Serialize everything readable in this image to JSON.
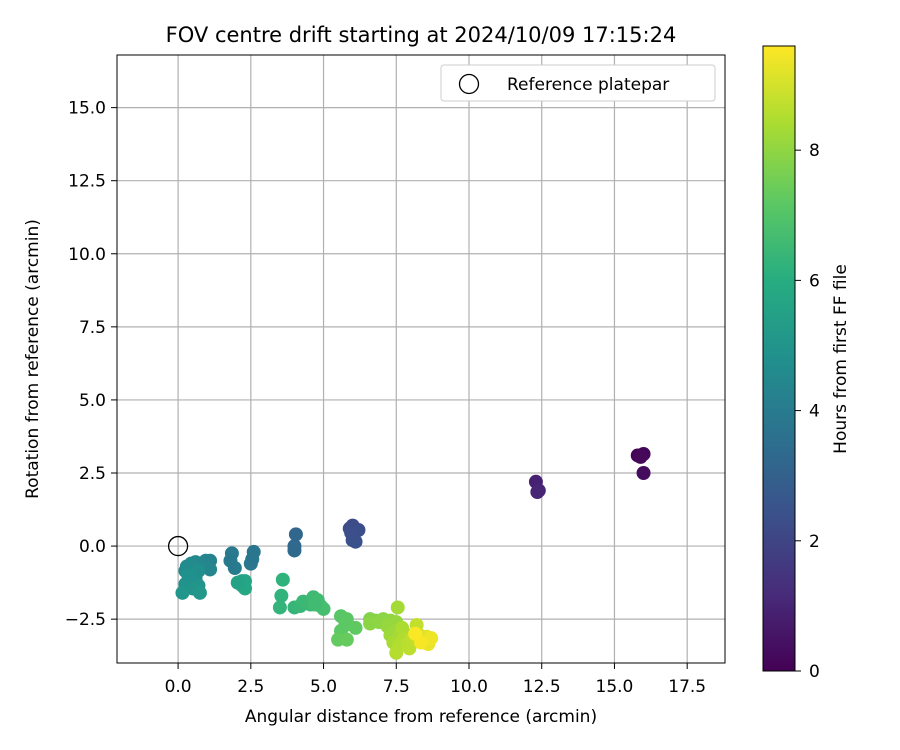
{
  "chart_data": {
    "type": "scatter",
    "title": "FOV centre drift starting at 2024/10/09 17:15:24",
    "xlabel": "Angular distance from reference (arcmin)",
    "ylabel": "Rotation from reference (arcmin)",
    "xlim": [
      -2.1,
      18.8
    ],
    "ylim": [
      -4.0,
      16.8
    ],
    "xticks": [
      0.0,
      2.5,
      5.0,
      7.5,
      10.0,
      12.5,
      15.0,
      17.5
    ],
    "yticks": [
      -2.5,
      0.0,
      2.5,
      5.0,
      7.5,
      10.0,
      12.5,
      15.0
    ],
    "xtick_labels": [
      "0.0",
      "2.5",
      "5.0",
      "7.5",
      "10.0",
      "12.5",
      "15.0",
      "17.5"
    ],
    "ytick_labels": [
      "−2.5",
      "0.0",
      "2.5",
      "5.0",
      "7.5",
      "10.0",
      "12.5",
      "15.0"
    ],
    "grid": true,
    "legend": {
      "position": "top-right",
      "entries": [
        "Reference platepar"
      ]
    },
    "reference_point": {
      "label": "Reference platepar",
      "x": 0.0,
      "y": 0.0
    },
    "colorbar": {
      "label": "Hours from first FF file",
      "colormap": "viridis",
      "range": [
        0,
        9.6
      ],
      "ticks": [
        0,
        2,
        4,
        6,
        8
      ],
      "tick_labels": [
        "0",
        "2",
        "4",
        "6",
        "8"
      ]
    },
    "points": [
      {
        "x": 15.8,
        "y": 3.1,
        "c": 0.1
      },
      {
        "x": 16.0,
        "y": 3.15,
        "c": 0.15
      },
      {
        "x": 15.9,
        "y": 3.05,
        "c": 0.2
      },
      {
        "x": 16.0,
        "y": 2.5,
        "c": 0.3
      },
      {
        "x": 12.3,
        "y": 2.2,
        "c": 0.9
      },
      {
        "x": 12.4,
        "y": 1.9,
        "c": 1.0
      },
      {
        "x": 12.35,
        "y": 1.85,
        "c": 1.05
      },
      {
        "x": 5.9,
        "y": 0.6,
        "c": 2.2
      },
      {
        "x": 6.0,
        "y": 0.7,
        "c": 2.25
      },
      {
        "x": 6.2,
        "y": 0.55,
        "c": 2.3
      },
      {
        "x": 6.0,
        "y": 0.2,
        "c": 2.4
      },
      {
        "x": 6.1,
        "y": 0.15,
        "c": 2.45
      },
      {
        "x": 5.95,
        "y": 0.45,
        "c": 2.35
      },
      {
        "x": 4.05,
        "y": 0.4,
        "c": 3.2
      },
      {
        "x": 4.0,
        "y": 0.0,
        "c": 3.3
      },
      {
        "x": 4.0,
        "y": -0.15,
        "c": 3.35
      },
      {
        "x": 2.6,
        "y": -0.2,
        "c": 3.8
      },
      {
        "x": 2.5,
        "y": -0.6,
        "c": 3.85
      },
      {
        "x": 1.85,
        "y": -0.25,
        "c": 3.95
      },
      {
        "x": 1.95,
        "y": -0.75,
        "c": 4.0
      },
      {
        "x": 1.8,
        "y": -0.5,
        "c": 3.9
      },
      {
        "x": 2.55,
        "y": -0.45,
        "c": 3.8
      },
      {
        "x": 1.1,
        "y": -0.5,
        "c": 4.3
      },
      {
        "x": 0.95,
        "y": -0.5,
        "c": 4.35
      },
      {
        "x": 1.1,
        "y": -0.8,
        "c": 4.4
      },
      {
        "x": 0.85,
        "y": -0.7,
        "c": 4.45
      },
      {
        "x": 0.6,
        "y": -0.55,
        "c": 4.5
      },
      {
        "x": 0.45,
        "y": -0.6,
        "c": 4.55
      },
      {
        "x": 0.3,
        "y": -0.7,
        "c": 4.6
      },
      {
        "x": 0.25,
        "y": -0.85,
        "c": 4.65
      },
      {
        "x": 0.5,
        "y": -0.9,
        "c": 4.7
      },
      {
        "x": 0.7,
        "y": -0.85,
        "c": 4.75
      },
      {
        "x": 0.6,
        "y": -1.1,
        "c": 4.8
      },
      {
        "x": 0.4,
        "y": -1.2,
        "c": 4.85
      },
      {
        "x": 0.25,
        "y": -1.3,
        "c": 4.9
      },
      {
        "x": 0.7,
        "y": -1.35,
        "c": 4.95
      },
      {
        "x": 0.5,
        "y": -1.45,
        "c": 5.0
      },
      {
        "x": 0.15,
        "y": -1.6,
        "c": 5.05
      },
      {
        "x": 0.75,
        "y": -1.6,
        "c": 5.1
      },
      {
        "x": 0.35,
        "y": -1.0,
        "c": 4.85
      },
      {
        "x": 2.2,
        "y": -1.2,
        "c": 5.6
      },
      {
        "x": 2.3,
        "y": -1.2,
        "c": 5.65
      },
      {
        "x": 2.2,
        "y": -1.35,
        "c": 5.7
      },
      {
        "x": 2.3,
        "y": -1.45,
        "c": 5.75
      },
      {
        "x": 2.05,
        "y": -1.25,
        "c": 5.55
      },
      {
        "x": 3.6,
        "y": -1.15,
        "c": 6.2
      },
      {
        "x": 3.55,
        "y": -1.7,
        "c": 6.25
      },
      {
        "x": 3.5,
        "y": -2.1,
        "c": 6.3
      },
      {
        "x": 4.0,
        "y": -2.1,
        "c": 6.35
      },
      {
        "x": 4.2,
        "y": -2.05,
        "c": 6.4
      },
      {
        "x": 4.3,
        "y": -1.9,
        "c": 6.45
      },
      {
        "x": 4.55,
        "y": -2.0,
        "c": 6.5
      },
      {
        "x": 4.65,
        "y": -1.75,
        "c": 6.55
      },
      {
        "x": 4.8,
        "y": -1.85,
        "c": 6.6
      },
      {
        "x": 4.9,
        "y": -2.05,
        "c": 6.65
      },
      {
        "x": 5.0,
        "y": -2.15,
        "c": 6.7
      },
      {
        "x": 4.7,
        "y": -2.0,
        "c": 6.6
      },
      {
        "x": 5.6,
        "y": -2.4,
        "c": 7.1
      },
      {
        "x": 5.8,
        "y": -2.5,
        "c": 7.15
      },
      {
        "x": 5.75,
        "y": -2.7,
        "c": 7.2
      },
      {
        "x": 5.6,
        "y": -2.9,
        "c": 7.2
      },
      {
        "x": 6.1,
        "y": -2.8,
        "c": 7.25
      },
      {
        "x": 5.5,
        "y": -3.2,
        "c": 7.3
      },
      {
        "x": 5.8,
        "y": -3.2,
        "c": 7.35
      },
      {
        "x": 6.6,
        "y": -2.5,
        "c": 7.8
      },
      {
        "x": 6.8,
        "y": -2.55,
        "c": 7.85
      },
      {
        "x": 7.05,
        "y": -2.5,
        "c": 7.9
      },
      {
        "x": 6.6,
        "y": -2.65,
        "c": 7.9
      },
      {
        "x": 6.9,
        "y": -2.6,
        "c": 7.95
      },
      {
        "x": 7.3,
        "y": -2.55,
        "c": 8.0
      },
      {
        "x": 7.5,
        "y": -2.6,
        "c": 8.1
      },
      {
        "x": 7.2,
        "y": -2.75,
        "c": 8.1
      },
      {
        "x": 7.45,
        "y": -2.9,
        "c": 8.15
      },
      {
        "x": 7.3,
        "y": -3.05,
        "c": 8.2
      },
      {
        "x": 7.55,
        "y": -2.1,
        "c": 8.3
      },
      {
        "x": 7.6,
        "y": -3.1,
        "c": 8.3
      },
      {
        "x": 7.4,
        "y": -3.3,
        "c": 8.35
      },
      {
        "x": 7.7,
        "y": -2.8,
        "c": 8.4
      },
      {
        "x": 7.8,
        "y": -3.0,
        "c": 8.45
      },
      {
        "x": 7.75,
        "y": -3.2,
        "c": 8.5
      },
      {
        "x": 7.6,
        "y": -3.4,
        "c": 8.5
      },
      {
        "x": 7.5,
        "y": -3.65,
        "c": 8.55
      },
      {
        "x": 7.9,
        "y": -3.35,
        "c": 8.6
      },
      {
        "x": 7.95,
        "y": -3.5,
        "c": 8.65
      },
      {
        "x": 8.05,
        "y": -3.15,
        "c": 8.7
      },
      {
        "x": 8.2,
        "y": -2.7,
        "c": 8.75
      },
      {
        "x": 8.3,
        "y": -3.05,
        "c": 8.9
      },
      {
        "x": 8.4,
        "y": -3.2,
        "c": 9.0
      },
      {
        "x": 8.5,
        "y": -3.3,
        "c": 9.1
      },
      {
        "x": 8.55,
        "y": -3.1,
        "c": 9.2
      },
      {
        "x": 8.6,
        "y": -3.35,
        "c": 9.3
      },
      {
        "x": 8.7,
        "y": -3.15,
        "c": 9.4
      },
      {
        "x": 8.35,
        "y": -3.3,
        "c": 9.5
      },
      {
        "x": 8.15,
        "y": -3.0,
        "c": 9.55
      }
    ]
  }
}
